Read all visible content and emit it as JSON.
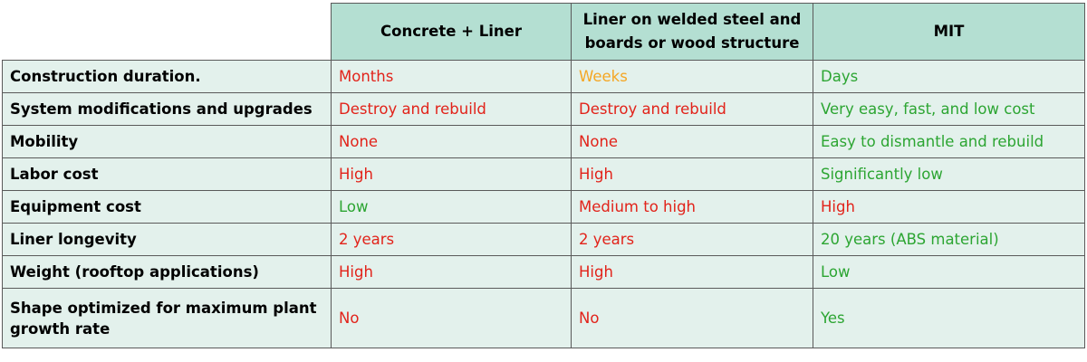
{
  "table": {
    "header": [
      "Concrete + Liner",
      "Liner on welded steel and boards or wood structure",
      "MIT"
    ],
    "rows": [
      {
        "label": "Construction duration.",
        "cells": [
          {
            "text": "Months",
            "color": "#e2231a"
          },
          {
            "text": "Weeks",
            "color": "#f5a623"
          },
          {
            "text": "Days",
            "color": "#2ca532"
          }
        ]
      },
      {
        "label": "System modifications and upgrades",
        "cells": [
          {
            "text": "Destroy and rebuild",
            "color": "#e2231a"
          },
          {
            "text": "Destroy and rebuild",
            "color": "#e2231a"
          },
          {
            "text": "Very easy, fast, and low cost",
            "color": "#2ca532"
          }
        ]
      },
      {
        "label": "Mobility",
        "cells": [
          {
            "text": "None",
            "color": "#e2231a"
          },
          {
            "text": "None",
            "color": "#e2231a"
          },
          {
            "text": "Easy to dismantle and rebuild",
            "color": "#2ca532"
          }
        ]
      },
      {
        "label": "Labor cost",
        "cells": [
          {
            "text": "High",
            "color": "#e2231a"
          },
          {
            "text": "High",
            "color": "#e2231a"
          },
          {
            "text": "Significantly low",
            "color": "#2ca532"
          }
        ]
      },
      {
        "label": "Equipment cost",
        "cells": [
          {
            "text": "Low",
            "color": "#2ca532"
          },
          {
            "text": "Medium to high",
            "color": "#e2231a"
          },
          {
            "text": "High",
            "color": "#e2231a"
          }
        ]
      },
      {
        "label": "Liner longevity",
        "cells": [
          {
            "text": "2 years",
            "color": "#e2231a"
          },
          {
            "text": "2 years",
            "color": "#e2231a"
          },
          {
            "text": "20 years (ABS material)",
            "color": "#2ca532"
          }
        ]
      },
      {
        "label": "Weight (rooftop applications)",
        "cells": [
          {
            "text": "High",
            "color": "#e2231a"
          },
          {
            "text": "High",
            "color": "#e2231a"
          },
          {
            "text": "Low",
            "color": "#2ca532"
          }
        ]
      },
      {
        "label": "Shape optimized for maximum plant growth rate",
        "cells": [
          {
            "text": "No",
            "color": "#e2231a"
          },
          {
            "text": "No",
            "color": "#e2231a"
          },
          {
            "text": "Yes",
            "color": "#2ca532"
          }
        ]
      }
    ]
  }
}
